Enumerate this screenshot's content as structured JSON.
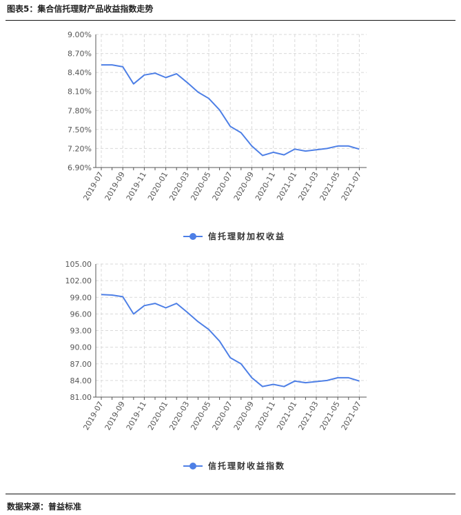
{
  "header": {
    "title": "图表5：集合信托理财产品收益指数走势"
  },
  "footer": {
    "source": "数据来源：普益标准"
  },
  "colors": {
    "series": "#4d7fe6",
    "grid": "#d9d9d9",
    "axis": "#555555",
    "rule": "#111111"
  },
  "chart_data": [
    {
      "type": "line",
      "y_format": "percent2",
      "ylim": [
        6.9,
        9.0
      ],
      "yticks": [
        6.9,
        7.2,
        7.5,
        7.8,
        8.1,
        8.4,
        8.7,
        9.0
      ],
      "ytick_labels": [
        "6.90%",
        "7.20%",
        "7.50%",
        "7.80%",
        "8.10%",
        "8.40%",
        "8.70%",
        "9.00%"
      ],
      "xtick_labels": [
        "2019-07",
        "2019-09",
        "2019-11",
        "2020-01",
        "2020-03",
        "2020-05",
        "2020-07",
        "2020-09",
        "2020-11",
        "2021-01",
        "2021-03",
        "2021-05",
        "2021-07"
      ],
      "x": [
        "2019-07",
        "2019-08",
        "2019-09",
        "2019-10",
        "2019-11",
        "2019-12",
        "2020-01",
        "2020-02",
        "2020-03",
        "2020-04",
        "2020-05",
        "2020-06",
        "2020-07",
        "2020-08",
        "2020-09",
        "2020-10",
        "2020-11",
        "2020-12",
        "2021-01",
        "2021-02",
        "2021-03",
        "2021-04",
        "2021-05",
        "2021-06",
        "2021-07"
      ],
      "series": [
        {
          "name": "信托理财加权收益",
          "values": [
            8.52,
            8.52,
            8.49,
            8.22,
            8.36,
            8.39,
            8.32,
            8.38,
            8.24,
            8.09,
            7.99,
            7.81,
            7.55,
            7.45,
            7.24,
            7.09,
            7.14,
            7.1,
            7.19,
            7.16,
            7.18,
            7.2,
            7.24,
            7.24,
            7.19
          ]
        }
      ],
      "legend": "bottom-center",
      "grid": true
    },
    {
      "type": "line",
      "y_format": "fixed2",
      "ylim": [
        81.0,
        105.0
      ],
      "yticks": [
        81,
        84,
        87,
        90,
        93,
        96,
        99,
        102,
        105
      ],
      "ytick_labels": [
        "81.00",
        "84.00",
        "87.00",
        "90.00",
        "93.00",
        "96.00",
        "99.00",
        "102.00",
        "105.00"
      ],
      "xtick_labels": [
        "2019-07",
        "2019-09",
        "2019-11",
        "2020-01",
        "2020-03",
        "2020-05",
        "2020-07",
        "2020-09",
        "2020-11",
        "2021-01",
        "2021-03",
        "2021-05",
        "2021-07"
      ],
      "x": [
        "2019-07",
        "2019-08",
        "2019-09",
        "2019-10",
        "2019-11",
        "2019-12",
        "2020-01",
        "2020-02",
        "2020-03",
        "2020-04",
        "2020-05",
        "2020-06",
        "2020-07",
        "2020-08",
        "2020-09",
        "2020-10",
        "2020-11",
        "2020-12",
        "2021-01",
        "2021-02",
        "2021-03",
        "2021-04",
        "2021-05",
        "2021-06",
        "2021-07"
      ],
      "series": [
        {
          "name": "信托理财收益指数",
          "values": [
            99.5,
            99.4,
            99.1,
            96.0,
            97.5,
            97.9,
            97.1,
            97.9,
            96.3,
            94.6,
            93.2,
            91.1,
            88.1,
            87.0,
            84.5,
            82.9,
            83.3,
            82.9,
            83.9,
            83.6,
            83.8,
            84.0,
            84.5,
            84.5,
            83.9
          ]
        }
      ],
      "legend": "bottom-center",
      "grid": true
    }
  ]
}
